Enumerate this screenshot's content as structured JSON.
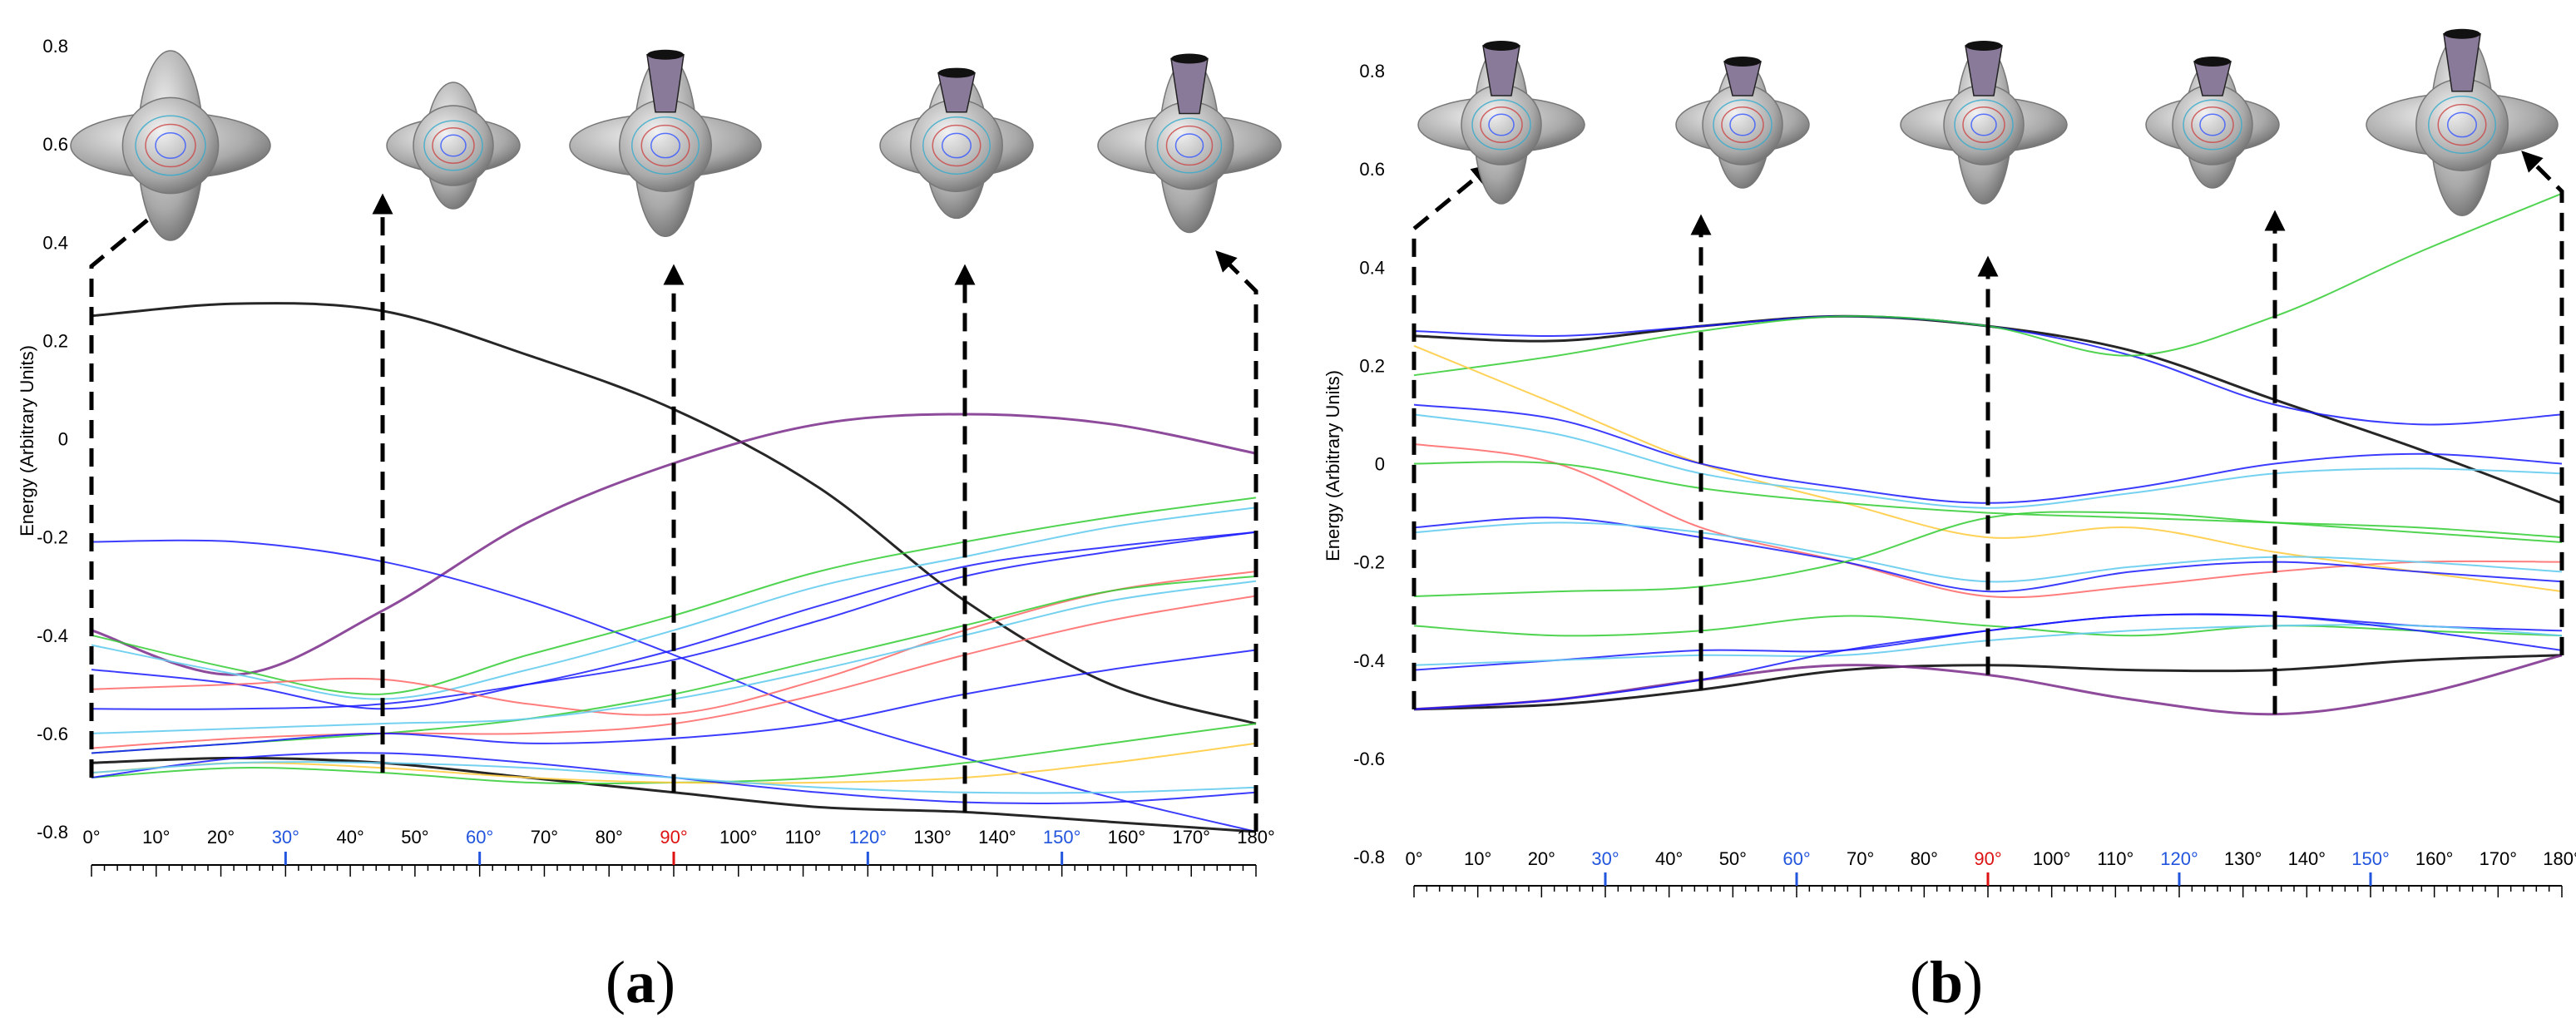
{
  "chart_data": [
    {
      "type": "line",
      "panel_label": "a",
      "ylabel": "Energy (Arbitrary Units)",
      "ylim": [
        -0.8,
        0.8
      ],
      "yticks": [
        "0.8",
        "0.6",
        "0.4",
        "0.2",
        "0",
        "-0.2",
        "-0.4",
        "-0.6",
        "-0.8"
      ],
      "xlim": [
        0,
        180
      ],
      "xticks": [
        "0°",
        "10°",
        "20°",
        "30°",
        "40°",
        "50°",
        "60°",
        "70°",
        "80°",
        "90°",
        "100°",
        "110°",
        "120°",
        "130°",
        "140°",
        "150°",
        "160°",
        "170°",
        "180°"
      ],
      "x": [
        0,
        22.5,
        45,
        67.5,
        90,
        112.5,
        135,
        157.5,
        180
      ],
      "series": [
        {
          "color": "#000000",
          "values": [
            0.25,
            0.275,
            0.26,
            0.17,
            0.06,
            -0.1,
            -0.33,
            -0.5,
            -0.58
          ]
        },
        {
          "color": "#7a2a8a",
          "values": [
            -0.39,
            -0.48,
            -0.35,
            -0.17,
            -0.05,
            0.03,
            0.05,
            0.03,
            -0.03
          ]
        },
        {
          "color": "#1a1aff",
          "values": [
            -0.21,
            -0.21,
            -0.25,
            -0.33,
            -0.44,
            -0.56,
            -0.65,
            -0.73,
            -0.8
          ]
        },
        {
          "color": "#000000",
          "values": [
            -0.66,
            -0.65,
            -0.66,
            -0.69,
            -0.72,
            -0.75,
            -0.76,
            -0.78,
            -0.8
          ]
        },
        {
          "color": "#33cc33",
          "values": [
            -0.4,
            -0.47,
            -0.52,
            -0.44,
            -0.36,
            -0.27,
            -0.21,
            -0.16,
            -0.12
          ]
        },
        {
          "color": "#66ccee",
          "values": [
            -0.42,
            -0.48,
            -0.53,
            -0.47,
            -0.39,
            -0.3,
            -0.24,
            -0.18,
            -0.14
          ]
        },
        {
          "color": "#1a1aff",
          "values": [
            -0.47,
            -0.5,
            -0.55,
            -0.5,
            -0.43,
            -0.34,
            -0.26,
            -0.22,
            -0.19
          ]
        },
        {
          "color": "#1a1aff",
          "values": [
            -0.55,
            -0.55,
            -0.54,
            -0.5,
            -0.45,
            -0.37,
            -0.28,
            -0.23,
            -0.19
          ]
        },
        {
          "color": "#ff6666",
          "values": [
            -0.51,
            -0.5,
            -0.49,
            -0.54,
            -0.56,
            -0.49,
            -0.39,
            -0.31,
            -0.27
          ]
        },
        {
          "color": "#33cc33",
          "values": [
            -0.64,
            -0.62,
            -0.6,
            -0.57,
            -0.52,
            -0.45,
            -0.38,
            -0.31,
            -0.28
          ]
        },
        {
          "color": "#66ccee",
          "values": [
            -0.6,
            -0.59,
            -0.58,
            -0.57,
            -0.53,
            -0.47,
            -0.4,
            -0.33,
            -0.29
          ]
        },
        {
          "color": "#ff6666",
          "values": [
            -0.63,
            -0.61,
            -0.6,
            -0.6,
            -0.58,
            -0.52,
            -0.44,
            -0.37,
            -0.32
          ]
        },
        {
          "color": "#1a1aff",
          "values": [
            -0.64,
            -0.62,
            -0.6,
            -0.62,
            -0.61,
            -0.58,
            -0.52,
            -0.47,
            -0.43
          ]
        },
        {
          "color": "#33cc33",
          "values": [
            -0.69,
            -0.67,
            -0.68,
            -0.7,
            -0.7,
            -0.69,
            -0.66,
            -0.62,
            -0.58
          ]
        },
        {
          "color": "#ffcc44",
          "values": [
            -0.68,
            -0.66,
            -0.67,
            -0.69,
            -0.7,
            -0.7,
            -0.69,
            -0.66,
            -0.62
          ]
        },
        {
          "color": "#1a1aff",
          "values": [
            -0.69,
            -0.65,
            -0.64,
            -0.66,
            -0.69,
            -0.72,
            -0.74,
            -0.74,
            -0.72
          ]
        },
        {
          "color": "#66ccee",
          "values": [
            -0.68,
            -0.66,
            -0.66,
            -0.67,
            -0.69,
            -0.71,
            -0.72,
            -0.72,
            -0.71
          ]
        }
      ],
      "markers_x": [
        0,
        45,
        90,
        135,
        180
      ]
    },
    {
      "type": "line",
      "panel_label": "b",
      "ylabel": "Energy (Arbitrary Units)",
      "ylim": [
        -0.8,
        0.8
      ],
      "yticks": [
        "0.8",
        "0.6",
        "0.4",
        "0.2",
        "0",
        "-0.2",
        "-0.4",
        "-0.6",
        "-0.8"
      ],
      "xlim": [
        0,
        180
      ],
      "xticks": [
        "0°",
        "10°",
        "20°",
        "30°",
        "40°",
        "50°",
        "60°",
        "70°",
        "80°",
        "90°",
        "100°",
        "110°",
        "120°",
        "130°",
        "140°",
        "150°",
        "160°",
        "170°",
        "180°"
      ],
      "x": [
        0,
        22.5,
        45,
        67.5,
        90,
        112.5,
        135,
        157.5,
        180
      ],
      "series": [
        {
          "color": "#000000",
          "values": [
            0.26,
            0.25,
            0.28,
            0.3,
            0.28,
            0.23,
            0.13,
            0.03,
            -0.08
          ]
        },
        {
          "color": "#1a1aff",
          "values": [
            0.27,
            0.26,
            0.28,
            0.3,
            0.28,
            0.22,
            0.12,
            0.08,
            0.1
          ]
        },
        {
          "color": "#33cc33",
          "values": [
            0.18,
            0.22,
            0.27,
            0.3,
            0.28,
            0.22,
            0.3,
            0.43,
            0.55
          ]
        },
        {
          "color": "#ffcc44",
          "values": [
            0.24,
            0.12,
            0.0,
            -0.08,
            -0.15,
            -0.13,
            -0.18,
            -0.22,
            -0.26
          ]
        },
        {
          "color": "#ff6666",
          "values": [
            0.04,
            0.0,
            -0.13,
            -0.2,
            -0.27,
            -0.25,
            -0.22,
            -0.2,
            -0.2
          ]
        },
        {
          "color": "#1a1aff",
          "values": [
            0.12,
            0.09,
            0.0,
            -0.05,
            -0.08,
            -0.05,
            0.0,
            0.02,
            0.0
          ]
        },
        {
          "color": "#66ccee",
          "values": [
            0.1,
            0.06,
            -0.02,
            -0.06,
            -0.09,
            -0.06,
            -0.02,
            -0.01,
            -0.02
          ]
        },
        {
          "color": "#33cc33",
          "values": [
            0.0,
            0.0,
            -0.05,
            -0.08,
            -0.1,
            -0.11,
            -0.12,
            -0.13,
            -0.15
          ]
        },
        {
          "color": "#1a1aff",
          "values": [
            -0.13,
            -0.11,
            -0.15,
            -0.2,
            -0.26,
            -0.22,
            -0.2,
            -0.22,
            -0.24
          ]
        },
        {
          "color": "#66ccee",
          "values": [
            -0.14,
            -0.12,
            -0.14,
            -0.19,
            -0.24,
            -0.21,
            -0.19,
            -0.2,
            -0.22
          ]
        },
        {
          "color": "#33cc33",
          "values": [
            -0.27,
            -0.26,
            -0.25,
            -0.2,
            -0.11,
            -0.1,
            -0.12,
            -0.14,
            -0.16
          ]
        },
        {
          "color": "#33cc33",
          "values": [
            -0.33,
            -0.35,
            -0.34,
            -0.31,
            -0.33,
            -0.35,
            -0.33,
            -0.34,
            -0.35
          ]
        },
        {
          "color": "#1a1aff",
          "values": [
            -0.42,
            -0.4,
            -0.38,
            -0.38,
            -0.34,
            -0.31,
            -0.31,
            -0.33,
            -0.34
          ]
        },
        {
          "color": "#66ccee",
          "values": [
            -0.41,
            -0.4,
            -0.39,
            -0.39,
            -0.36,
            -0.34,
            -0.33,
            -0.33,
            -0.35
          ]
        },
        {
          "color": "#000000",
          "values": [
            -0.5,
            -0.49,
            -0.46,
            -0.42,
            -0.41,
            -0.42,
            -0.42,
            -0.4,
            -0.39
          ]
        },
        {
          "color": "#7a2a8a",
          "values": [
            -0.5,
            -0.48,
            -0.44,
            -0.41,
            -0.43,
            -0.48,
            -0.51,
            -0.47,
            -0.39
          ]
        },
        {
          "color": "#1a1aff",
          "values": [
            -0.5,
            -0.48,
            -0.44,
            -0.38,
            -0.34,
            -0.31,
            -0.31,
            -0.34,
            -0.38
          ]
        }
      ],
      "markers_x": [
        0,
        45,
        90,
        135,
        180
      ]
    }
  ],
  "tick_colors": {
    "default": "#000000",
    "blue": "#2255dd",
    "red": "#dd1111"
  },
  "tick_color_map": {
    "30°": "blue",
    "60°": "blue",
    "90°": "red",
    "120°": "blue",
    "150°": "blue"
  }
}
